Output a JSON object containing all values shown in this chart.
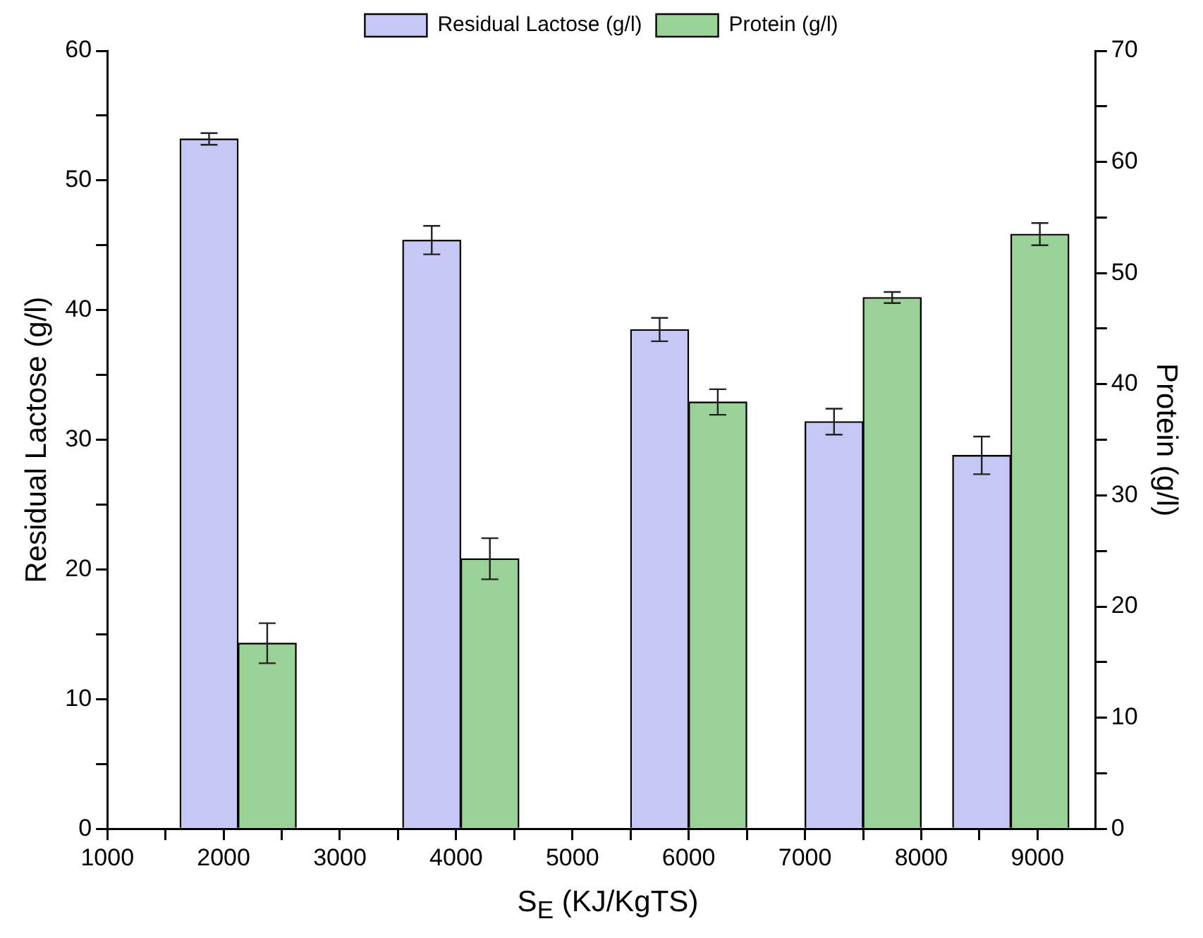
{
  "chart_data": {
    "type": "bar",
    "xlabel": "S$_{E}$ (KJ/KgTS)",
    "ylabel": "Residual Lactose (g/l)",
    "y2label": "Protein (g/l)",
    "legend": "top",
    "grid": false,
    "xlim": [
      1000,
      9500
    ],
    "xticks": [
      1000,
      {
        "value": 1500,
        "label": null
      },
      2000,
      {
        "value": 2500,
        "label": null
      },
      3000,
      {
        "value": 3500,
        "label": null
      },
      4000,
      {
        "value": 4500,
        "label": null
      },
      5000,
      {
        "value": 5500,
        "label": null
      },
      6000,
      {
        "value": 6500,
        "label": null
      },
      7000,
      {
        "value": 7500,
        "label": null
      },
      8000,
      {
        "value": 8500,
        "label": null
      },
      9000
    ],
    "ylim": [
      0,
      60
    ],
    "yticks": [
      0,
      {
        "value": 5,
        "label": null
      },
      10,
      {
        "value": 15,
        "label": null
      },
      20,
      {
        "value": 25,
        "label": null
      },
      30,
      {
        "value": 35,
        "label": null
      },
      40,
      {
        "value": 45,
        "label": null
      },
      50,
      {
        "value": 55,
        "label": null
      },
      60
    ],
    "y2lim": [
      0,
      70
    ],
    "y2ticks": [
      0,
      {
        "value": 5,
        "label": null
      },
      10,
      {
        "value": 15,
        "label": null
      },
      20,
      {
        "value": 25,
        "label": null
      },
      30,
      {
        "value": 35,
        "label": null
      },
      40,
      {
        "value": 45,
        "label": null
      },
      50,
      {
        "value": 55,
        "label": null
      },
      60,
      {
        "value": 65,
        "label": null
      },
      70
    ],
    "series": [
      {
        "name": "Residual Lactose (g/l)",
        "color": "#c5c8f5",
        "x": [
          1875,
          3790,
          5750,
          7250,
          8520
        ],
        "values": [
          53.2,
          45.4,
          38.5,
          31.4,
          28.8
        ],
        "errors": [
          0.45,
          1.1,
          0.9,
          1.0,
          1.45
        ]
      },
      {
        "name": "Protein (g/l)",
        "color": "#99d196",
        "axis": "y2",
        "x": [
          2375,
          4290,
          6250,
          7750,
          9020
        ],
        "values": [
          16.7,
          24.3,
          38.4,
          47.8,
          53.5
        ],
        "errors": [
          1.8,
          1.85,
          1.15,
          0.5,
          1.0
        ]
      }
    ]
  }
}
